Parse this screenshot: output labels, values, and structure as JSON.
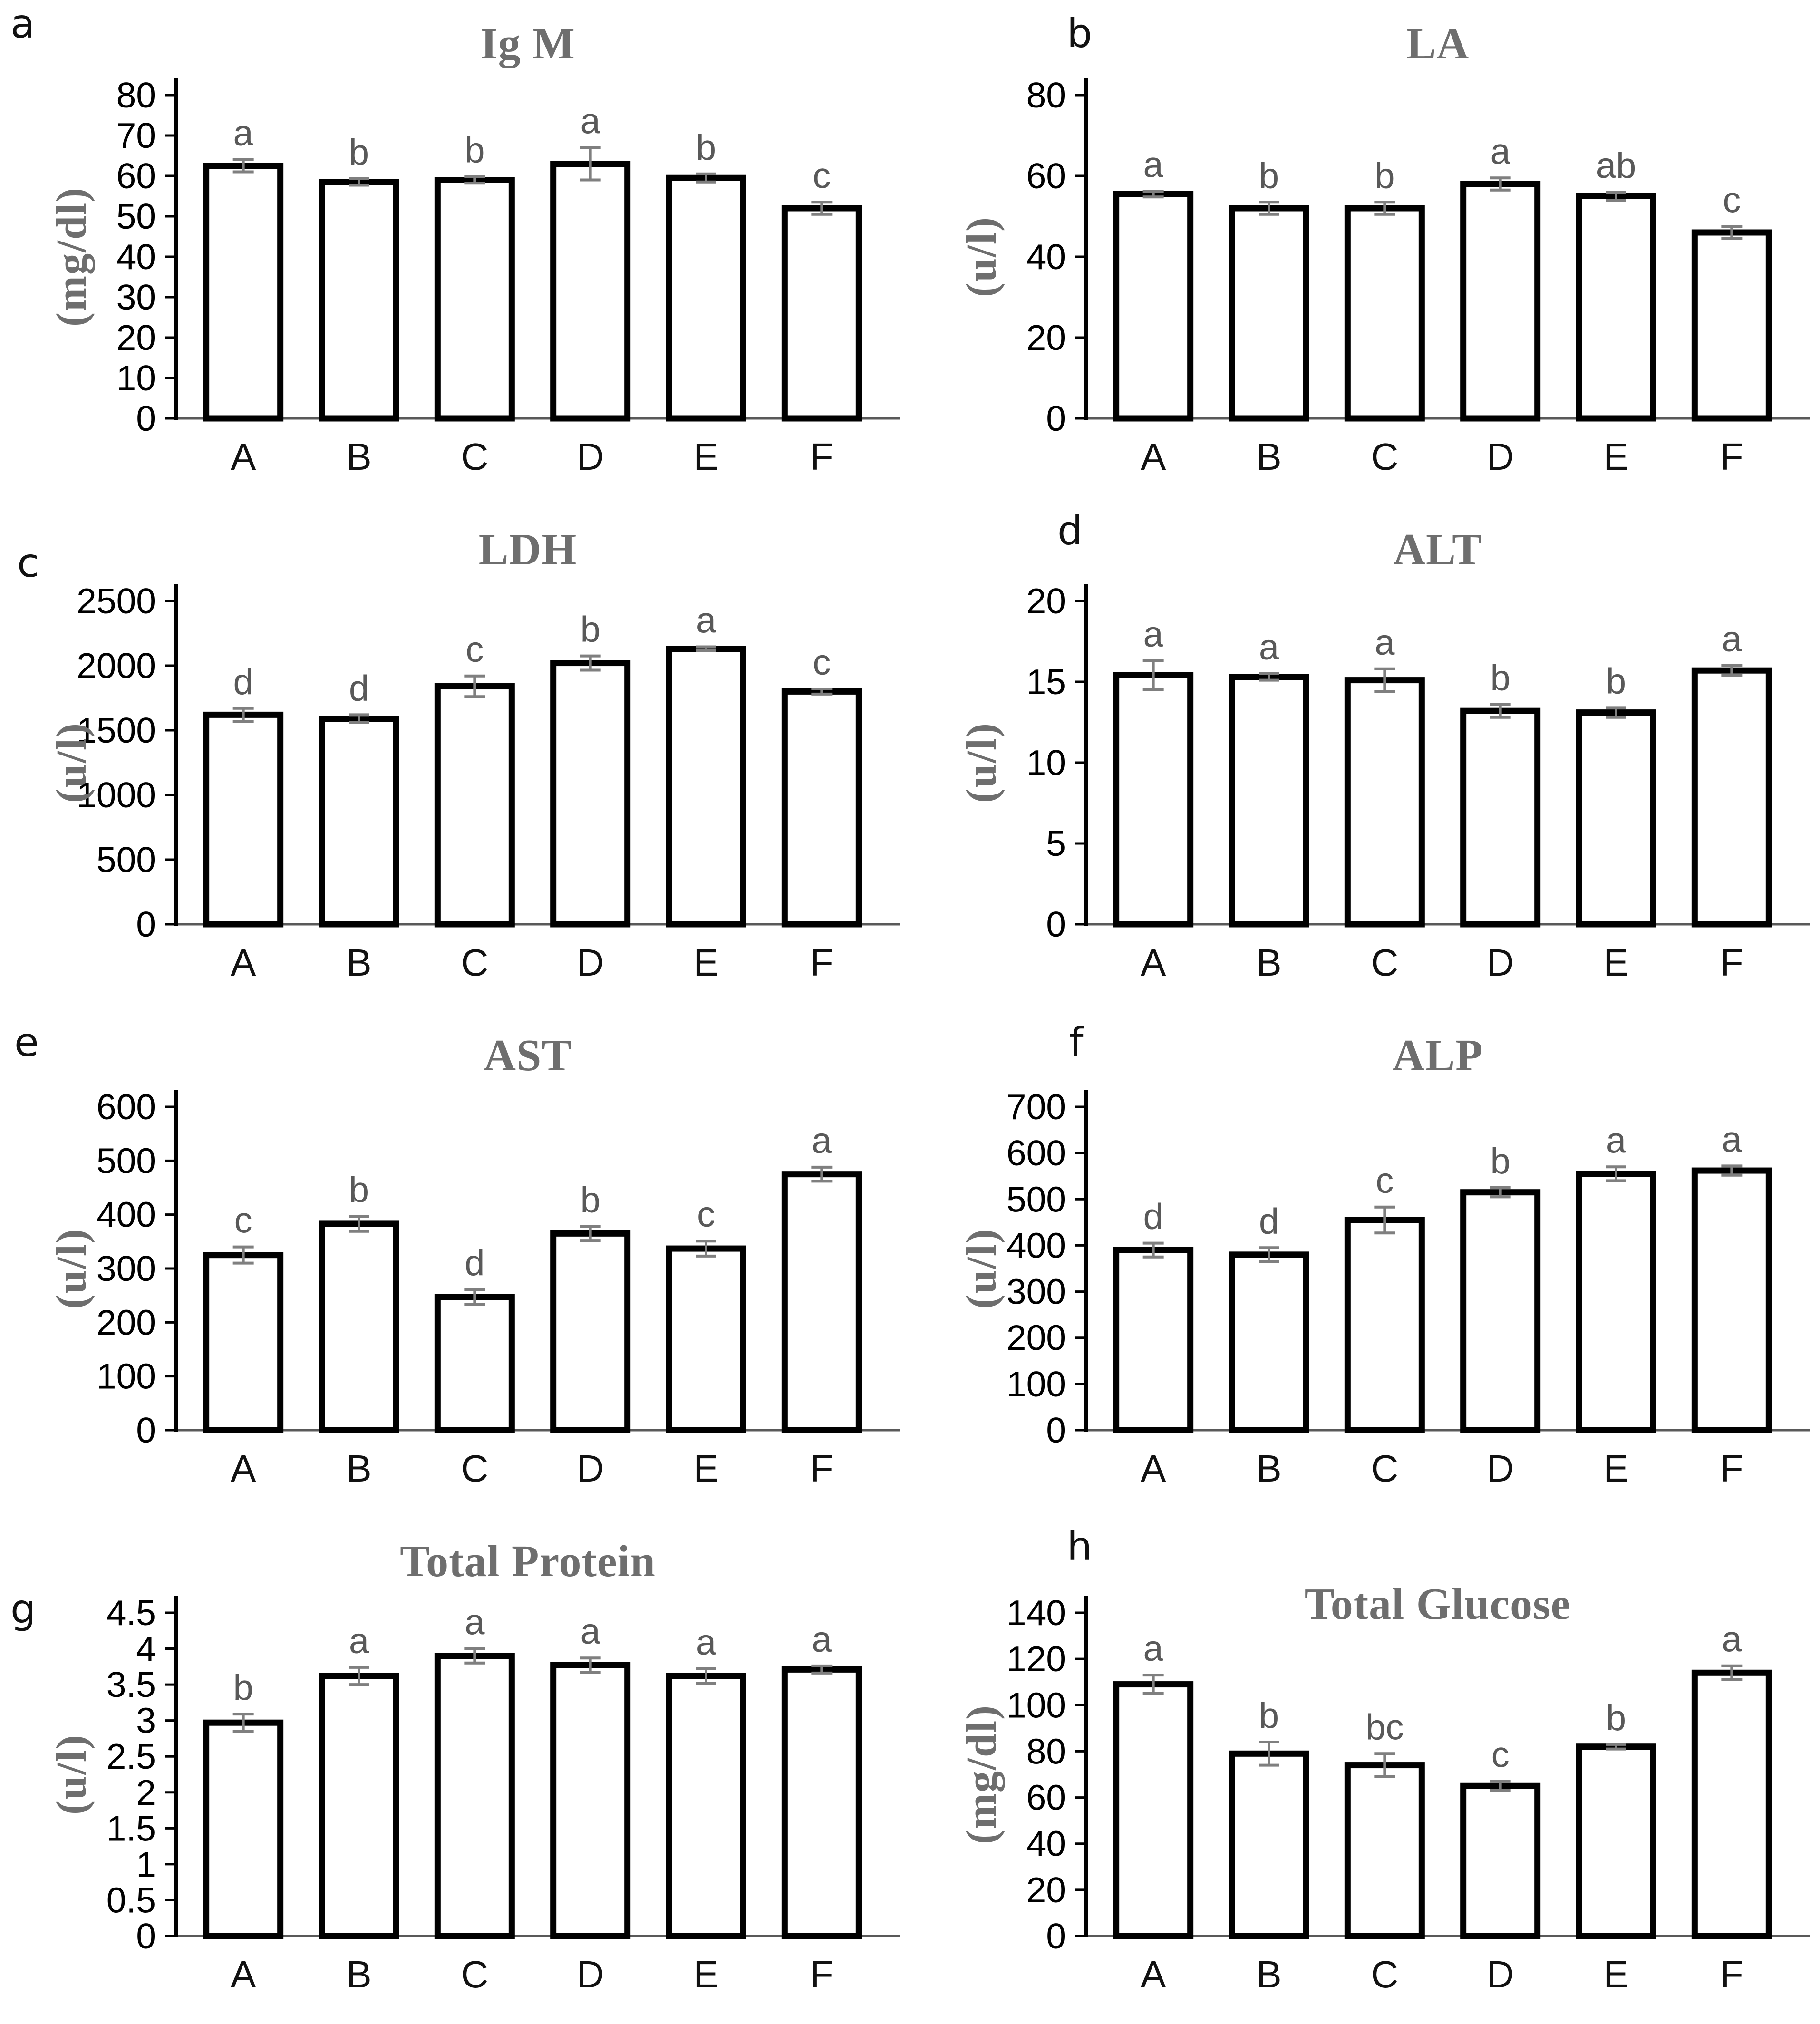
{
  "figure_type": "scientific multi-panel bar figure",
  "colors": {
    "bar_fill": "#ffffff",
    "bar_stroke": "#000000",
    "error_bar": "#7f7f7f",
    "title_gray": "#6e6e6e",
    "sig_letter_gray": "#595959",
    "x_axis": "#595959"
  },
  "chart_data": [
    {
      "type": "bar",
      "panel_letter": "a",
      "title": "Ig M",
      "ylabel": "(mg/dl)",
      "ylim": [
        0,
        80
      ],
      "ytick_step": 10,
      "categories": [
        "A",
        "B",
        "C",
        "D",
        "E",
        "F"
      ],
      "values": [
        62.5,
        58.5,
        59,
        63,
        59.5,
        52
      ],
      "errors": [
        1.5,
        0.8,
        0.8,
        4,
        1,
        1.5
      ],
      "sig_letters": [
        "a",
        "b",
        "b",
        "a",
        "b",
        "c"
      ]
    },
    {
      "type": "bar",
      "panel_letter": "b",
      "title": "LA",
      "ylabel": "(u/l)",
      "ylim": [
        0,
        80
      ],
      "ytick_step": 20,
      "categories": [
        "A",
        "B",
        "C",
        "D",
        "E",
        "F"
      ],
      "values": [
        55.5,
        52,
        52,
        58,
        55,
        46
      ],
      "errors": [
        0.7,
        1.5,
        1.5,
        1.5,
        1,
        1.5
      ],
      "sig_letters": [
        "a",
        "b",
        "b",
        "a",
        "ab",
        "c"
      ]
    },
    {
      "type": "bar",
      "panel_letter": "c",
      "title": "LDH",
      "ylabel": "(u/l)",
      "ylim": [
        0,
        2500
      ],
      "ytick_step": 500,
      "categories": [
        "A",
        "B",
        "C",
        "D",
        "E",
        "F"
      ],
      "values": [
        1620,
        1590,
        1840,
        2020,
        2130,
        1800
      ],
      "errors": [
        50,
        30,
        80,
        55,
        15,
        20
      ],
      "sig_letters": [
        "d",
        "d",
        "c",
        "b",
        "a",
        "c"
      ]
    },
    {
      "type": "bar",
      "panel_letter": "d",
      "title": "ALT",
      "ylabel": "(u/l)",
      "ylim": [
        0,
        20
      ],
      "ytick_step": 5,
      "categories": [
        "A",
        "B",
        "C",
        "D",
        "E",
        "F"
      ],
      "values": [
        15.4,
        15.3,
        15.1,
        13.2,
        13.1,
        15.7
      ],
      "errors": [
        0.9,
        0.2,
        0.7,
        0.4,
        0.3,
        0.3
      ],
      "sig_letters": [
        "a",
        "a",
        "a",
        "b",
        "b",
        "a"
      ]
    },
    {
      "type": "bar",
      "panel_letter": "e",
      "title": "AST",
      "ylabel": "(u/l)",
      "ylim": [
        0,
        600
      ],
      "ytick_step": 100,
      "categories": [
        "A",
        "B",
        "C",
        "D",
        "E",
        "F"
      ],
      "values": [
        325,
        383,
        247,
        365,
        337,
        475
      ],
      "errors": [
        15,
        14,
        14,
        13,
        14,
        13
      ],
      "sig_letters": [
        "c",
        "b",
        "d",
        "b",
        "c",
        "a"
      ]
    },
    {
      "type": "bar",
      "panel_letter": "f",
      "title": "ALP",
      "ylabel": "(u/l)",
      "ylim": [
        0,
        700
      ],
      "ytick_step": 100,
      "categories": [
        "A",
        "B",
        "C",
        "D",
        "E",
        "F"
      ],
      "values": [
        390,
        380,
        455,
        515,
        555,
        562
      ],
      "errors": [
        15,
        15,
        28,
        10,
        15,
        10
      ],
      "sig_letters": [
        "d",
        "d",
        "c",
        "b",
        "a",
        "a"
      ]
    },
    {
      "type": "bar",
      "panel_letter": "g",
      "title": "Total Protein",
      "ylabel": "(u/l)",
      "ylim": [
        0,
        4.5
      ],
      "ytick_step": 0.5,
      "categories": [
        "A",
        "B",
        "C",
        "D",
        "E",
        "F"
      ],
      "values": [
        2.97,
        3.62,
        3.9,
        3.77,
        3.62,
        3.71
      ],
      "errors": [
        0.12,
        0.12,
        0.1,
        0.1,
        0.1,
        0.05
      ],
      "sig_letters": [
        "b",
        "a",
        "a",
        "a",
        "a",
        "a"
      ]
    },
    {
      "type": "bar",
      "panel_letter": "h",
      "title": "Total Glucose",
      "ylabel": "(mg/dl)",
      "ylim": [
        0,
        140
      ],
      "ytick_step": 20,
      "categories": [
        "A",
        "B",
        "C",
        "D",
        "E",
        "F"
      ],
      "values": [
        109,
        79,
        74,
        65,
        82,
        114
      ],
      "errors": [
        4,
        5,
        5,
        2,
        1,
        3
      ],
      "sig_letters": [
        "a",
        "b",
        "bc",
        "c",
        "b",
        "a"
      ]
    }
  ]
}
